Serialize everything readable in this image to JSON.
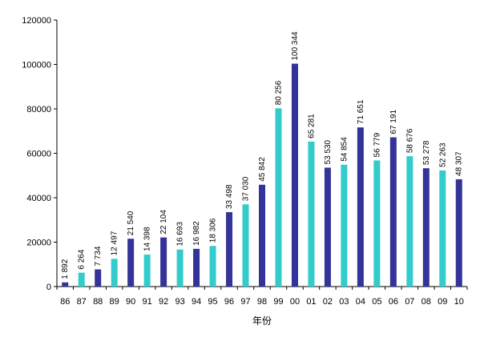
{
  "chart_data": {
    "type": "bar",
    "categories": [
      "86",
      "87",
      "88",
      "89",
      "90",
      "91",
      "92",
      "93",
      "94",
      "95",
      "96",
      "97",
      "98",
      "99",
      "00",
      "01",
      "02",
      "03",
      "04",
      "05",
      "06",
      "07",
      "08",
      "09",
      "10"
    ],
    "values": [
      1892,
      6264,
      7734,
      12497,
      21540,
      14398,
      22104,
      16693,
      16982,
      18306,
      33498,
      37030,
      45842,
      80256,
      100344,
      65281,
      53530,
      54854,
      71651,
      56779,
      67191,
      58676,
      53278,
      52263,
      48307
    ],
    "data_labels": [
      "1 892",
      "6 264",
      "7 734",
      "12 497",
      "21 540",
      "14 398",
      "22 104",
      "16 693",
      "16 982",
      "18 306",
      "33 498",
      "37 030",
      "45 842",
      "80 256",
      "100 344",
      "65 281",
      "53 530",
      "54 854",
      "71 651",
      "56 779",
      "67 191",
      "58 676",
      "53 278",
      "52 263",
      "48 307"
    ],
    "bar_colors": [
      "#333399",
      "#33CCCC",
      "#333399",
      "#33CCCC",
      "#333399",
      "#33CCCC",
      "#333399",
      "#33CCCC",
      "#333399",
      "#33CCCC",
      "#333399",
      "#33CCCC",
      "#333399",
      "#33CCCC",
      "#333399",
      "#33CCCC",
      "#333399",
      "#33CCCC",
      "#333399",
      "#33CCCC",
      "#333399",
      "#33CCCC",
      "#333399",
      "#33CCCC",
      "#333399"
    ],
    "y_ticks": [
      "0",
      "20000",
      "40000",
      "60000",
      "80000",
      "100000",
      "120000"
    ],
    "ylim": [
      0,
      120000
    ],
    "xlabel": "年份",
    "ylabel": "",
    "title": "",
    "grid": false,
    "legend": "none"
  }
}
